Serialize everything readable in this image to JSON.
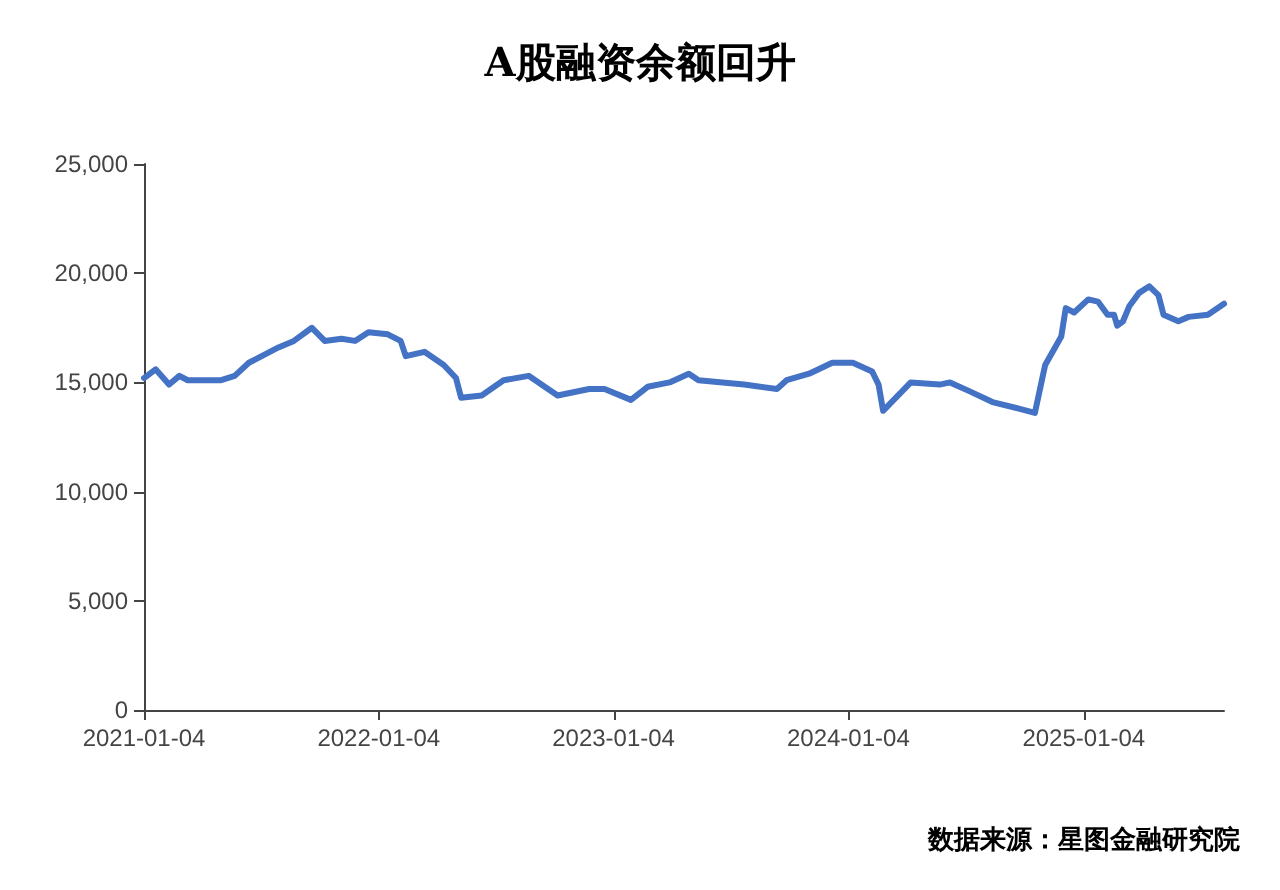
{
  "chart_data": {
    "type": "line",
    "title": "A股融资余额回升",
    "x": [
      "2021-01-04",
      "2021-01-22",
      "2021-02-12",
      "2021-02-28",
      "2021-03-13",
      "2021-05-04",
      "2021-05-25",
      "2021-06-16",
      "2021-08-01",
      "2021-08-25",
      "2021-09-22",
      "2021-10-12",
      "2021-11-07",
      "2021-11-28",
      "2021-12-19",
      "2022-01-18",
      "2022-02-07",
      "2022-02-15",
      "2022-03-16",
      "2022-04-15",
      "2022-05-04",
      "2022-05-12",
      "2022-06-13",
      "2022-07-17",
      "2022-08-25",
      "2022-10-09",
      "2022-11-27",
      "2022-12-21",
      "2023-01-31",
      "2023-02-26",
      "2023-04-01",
      "2023-05-01",
      "2023-05-16",
      "2023-07-26",
      "2023-09-15",
      "2023-09-30",
      "2023-11-04",
      "2023-12-10",
      "2024-01-11",
      "2024-02-10",
      "2024-02-20",
      "2024-02-27",
      "2024-04-10",
      "2024-05-25",
      "2024-06-10",
      "2024-07-10",
      "2024-08-15",
      "2024-09-25",
      "2024-10-20",
      "2024-11-05",
      "2024-11-30",
      "2024-12-07",
      "2024-12-20",
      "2025-01-11",
      "2025-01-26",
      "2025-02-10",
      "2025-02-20",
      "2025-02-25",
      "2025-03-06",
      "2025-03-16",
      "2025-03-31",
      "2025-04-16",
      "2025-04-30",
      "2025-05-08",
      "2025-05-31",
      "2025-06-16",
      "2025-07-16",
      "2025-08-10"
    ],
    "series": [
      {
        "color": "#4472c4",
        "values": [
          15200,
          15600,
          14900,
          15300,
          15100,
          15100,
          15300,
          15900,
          16600,
          16900,
          17500,
          16900,
          17000,
          16900,
          17300,
          17200,
          16900,
          16200,
          16400,
          15800,
          15200,
          14300,
          14400,
          15100,
          15300,
          14400,
          14700,
          14700,
          14200,
          14800,
          15000,
          15400,
          15100,
          14900,
          14700,
          15100,
          15400,
          15900,
          15900,
          15500,
          14900,
          13700,
          15000,
          14900,
          15000,
          14600,
          14100,
          13800,
          13600,
          15800,
          17100,
          18400,
          18200,
          18800,
          18700,
          18100,
          18100,
          17600,
          17800,
          18500,
          19100,
          19400,
          19000,
          18100,
          17800,
          18000,
          18100,
          18600
        ]
      }
    ],
    "xlim": [
      "2021-01-04",
      "2025-08-10"
    ],
    "xticks": [
      "2021-01-04",
      "2022-01-04",
      "2023-01-04",
      "2024-01-04",
      "2025-01-04"
    ],
    "ylim": [
      0,
      25000
    ],
    "yticks": [
      0,
      {
        "value": 5000,
        "label": "5,000"
      },
      {
        "value": 10000,
        "label": "10,000"
      },
      {
        "value": 15000,
        "label": "15,000"
      },
      {
        "value": 20000,
        "label": "20,000"
      },
      {
        "value": 25000,
        "label": "25,000"
      }
    ],
    "grid": false,
    "marker": "none",
    "line_style": "solid",
    "annotations": [
      "数据来源：星图金融研究院"
    ]
  }
}
